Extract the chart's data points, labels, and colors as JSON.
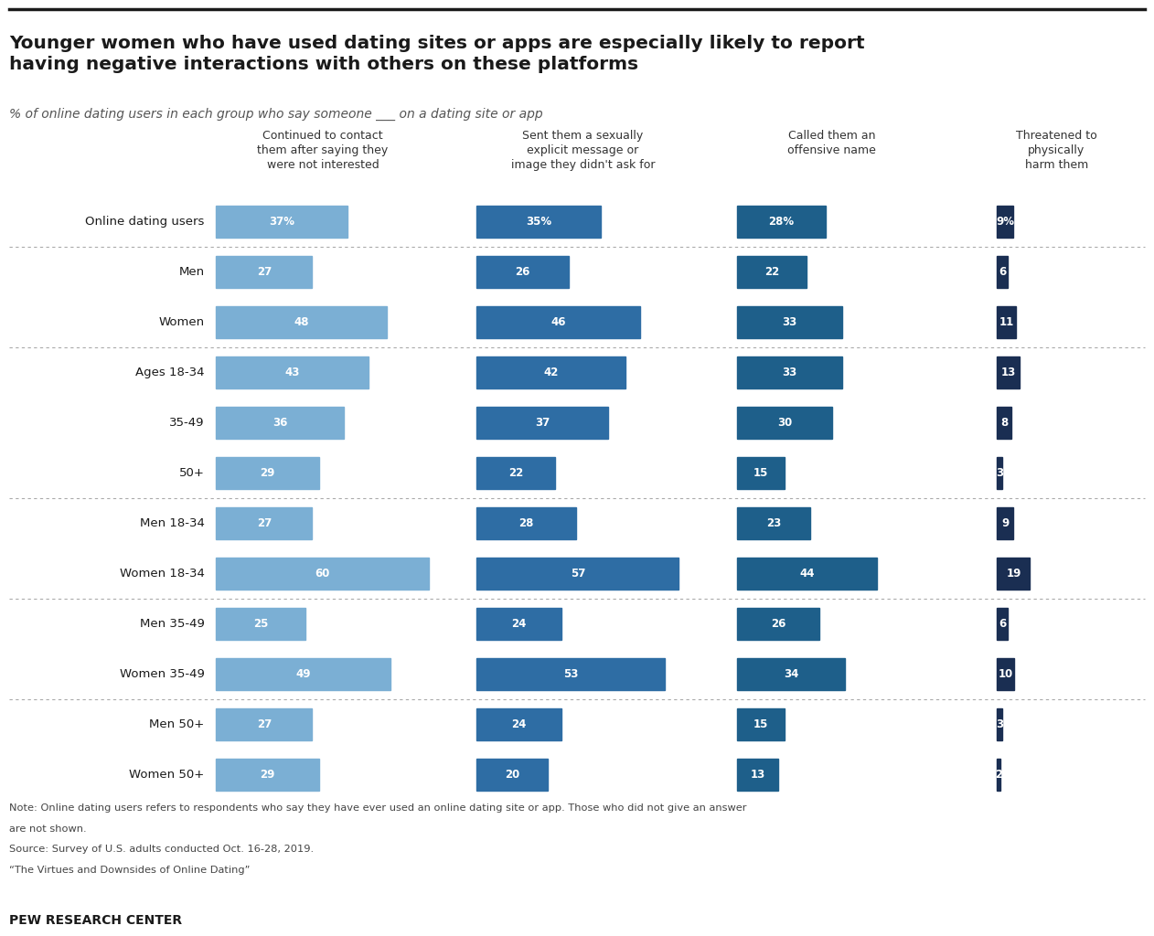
{
  "title": "Younger women who have used dating sites or apps are especially likely to report\nhaving negative interactions with others on these platforms",
  "subtitle": "% of online dating users in each group who say someone ___ on a dating site or app",
  "col_headers": [
    "Continued to contact\nthem after saying they\nwere not interested",
    "Sent them a sexually\nexplicit message or\nimage they didn't ask for",
    "Called them an\noffensive name",
    "Threatened to\nphysically\nharm them"
  ],
  "rows": [
    {
      "label": "Online dating users",
      "values": [
        37,
        35,
        28,
        9
      ],
      "separator_after": true
    },
    {
      "label": "Men",
      "values": [
        27,
        26,
        22,
        6
      ],
      "separator_after": false
    },
    {
      "label": "Women",
      "values": [
        48,
        46,
        33,
        11
      ],
      "separator_after": true
    },
    {
      "label": "Ages 18-34",
      "values": [
        43,
        42,
        33,
        13
      ],
      "separator_after": false
    },
    {
      "label": "35-49",
      "values": [
        36,
        37,
        30,
        8
      ],
      "separator_after": false
    },
    {
      "label": "50+",
      "values": [
        29,
        22,
        15,
        3
      ],
      "separator_after": true
    },
    {
      "label": "Men 18-34",
      "values": [
        27,
        28,
        23,
        9
      ],
      "separator_after": false
    },
    {
      "label": "Women 18-34",
      "values": [
        60,
        57,
        44,
        19
      ],
      "separator_after": true
    },
    {
      "label": "Men 35-49",
      "values": [
        25,
        24,
        26,
        6
      ],
      "separator_after": false
    },
    {
      "label": "Women 35-49",
      "values": [
        49,
        53,
        34,
        10
      ],
      "separator_after": true
    },
    {
      "label": "Men 50+",
      "values": [
        27,
        24,
        15,
        3
      ],
      "separator_after": false
    },
    {
      "label": "Women 50+",
      "values": [
        29,
        20,
        13,
        2
      ],
      "separator_after": false
    }
  ],
  "colors": [
    "#7bafd4",
    "#2e6da4",
    "#1e5f8a",
    "#1a2e52"
  ],
  "note1": "Note: Online dating users refers to respondents who say they have ever used an online dating site or app. Those who did not give an answer",
  "note2": "are not shown.",
  "note3": "Source: Survey of U.S. adults conducted Oct. 16-28, 2019.",
  "note4": "“The Virtues and Downsides of Online Dating”",
  "footer": "PEW RESEARCH CENTER",
  "bg_color": "#ffffff",
  "max_val": 65,
  "fig_width": 12.94,
  "fig_height": 10.38,
  "dpi": 100
}
